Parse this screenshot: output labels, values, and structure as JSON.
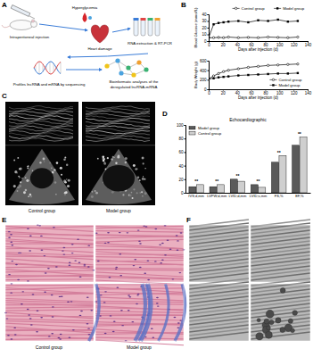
{
  "labels": [
    "A",
    "B",
    "C",
    "D",
    "E",
    "F"
  ],
  "diagram": {
    "steps": [
      [
        "Intraperitoneal injection"
      ],
      [
        "Hyperglycemia"
      ],
      [
        "Heart damage"
      ],
      [
        "RNA extraction & RT-PCR"
      ],
      [
        "Profiles lncRNA and mRNA by sequencing"
      ],
      [
        "Bioinformatic analyses of the",
        "deregulated lncRNA-mRNA"
      ]
    ]
  },
  "images": {
    "C": [
      "Control group",
      "Model group"
    ],
    "E": [
      "Control group",
      "Model group"
    ]
  },
  "chart_data": [
    {
      "type": "line",
      "x_label": "Days after injection (d)",
      "y_label": "Blood Glucose (mmol/L)",
      "x": [
        0,
        7,
        14,
        21,
        28,
        42,
        56,
        70,
        84,
        98,
        112,
        126
      ],
      "xlim": [
        0,
        140
      ],
      "xticks": [
        0,
        20,
        40,
        60,
        80,
        100,
        120,
        140
      ],
      "ylim": [
        0,
        40
      ],
      "yticks": [
        0,
        10,
        20,
        30,
        40
      ],
      "grid": false,
      "legend": "top",
      "series": [
        {
          "name": "Control group",
          "color": "#000000",
          "marker": "circle",
          "line_style": "solid",
          "values": [
            5,
            5,
            5.5,
            5,
            6,
            5,
            5.5,
            5,
            6,
            5.5,
            5,
            6
          ]
        },
        {
          "name": "Model group",
          "color": "#000000",
          "marker": "square",
          "line_style": "solid",
          "values": [
            5,
            25,
            27,
            28,
            29,
            30,
            28,
            31,
            30,
            32,
            29,
            30
          ]
        }
      ]
    },
    {
      "type": "line",
      "x_label": "Days after injection (d)",
      "y_label": "Body Weight (g)",
      "x": [
        0,
        7,
        14,
        21,
        28,
        42,
        56,
        70,
        84,
        98,
        112,
        126
      ],
      "xlim": [
        0,
        140
      ],
      "xticks": [
        0,
        20,
        40,
        60,
        80,
        100,
        120,
        140
      ],
      "ylim": [
        0,
        600
      ],
      "yticks": [
        0,
        200,
        400,
        600
      ],
      "grid": false,
      "legend": "lower right",
      "series": [
        {
          "name": "Control group",
          "color": "#000000",
          "marker": "circle",
          "line_style": "solid",
          "values": [
            220,
            280,
            330,
            370,
            400,
            430,
            460,
            480,
            500,
            510,
            520,
            530
          ]
        },
        {
          "name": "Model group",
          "color": "#000000",
          "marker": "square",
          "line_style": "solid",
          "values": [
            220,
            230,
            250,
            260,
            270,
            290,
            300,
            310,
            320,
            330,
            330,
            340
          ]
        }
      ]
    },
    {
      "type": "bar",
      "title": "Echocardiographic",
      "categories": [
        "IVS;d,mm",
        "LVPW;d,mm",
        "LVID;d,mm",
        "LVID;s,mm",
        "FS,%",
        "EF,%"
      ],
      "ylim": [
        0,
        100
      ],
      "yticks": [
        0,
        20,
        40,
        60,
        80,
        100
      ],
      "grid": false,
      "legend": "upper left",
      "annotations": [
        "**",
        "**",
        "**",
        "**",
        "**",
        "**"
      ],
      "series": [
        {
          "name": "Model group",
          "color": "#5a5a5a",
          "values": [
            9,
            9,
            20,
            12,
            45,
            70
          ]
        },
        {
          "name": "Control group",
          "color": "#cfcfcf",
          "values": [
            12,
            12,
            17,
            8,
            55,
            82
          ]
        }
      ]
    }
  ]
}
